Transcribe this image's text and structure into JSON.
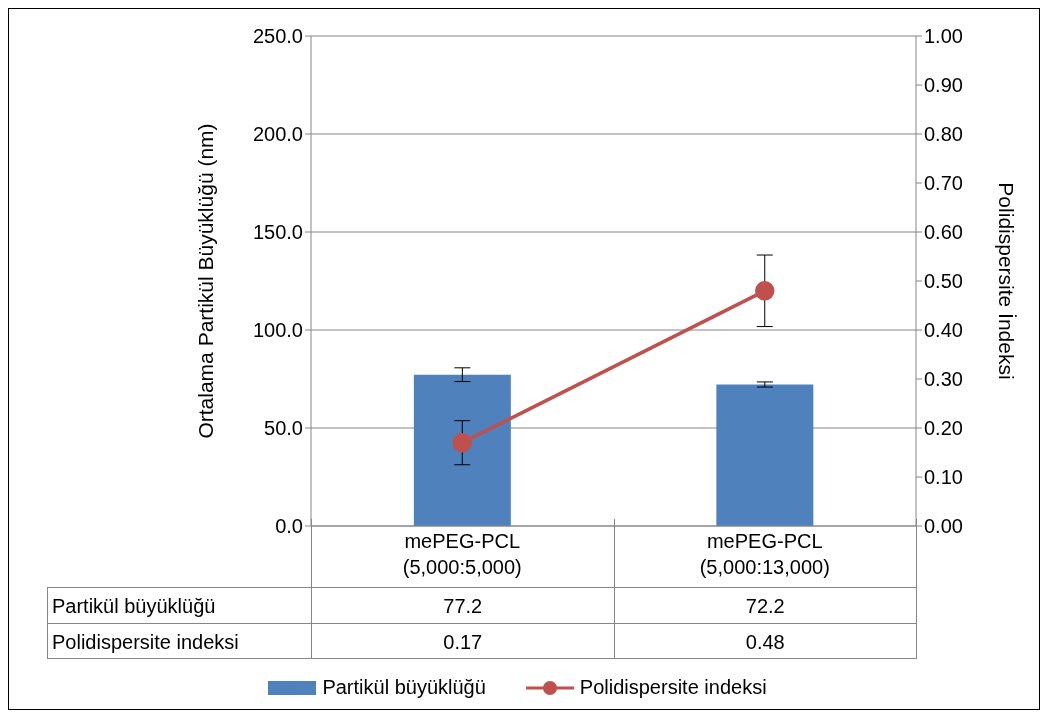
{
  "chart_data": {
    "type": "bar",
    "categories": [
      "mePEG-PCL (5,000:5,000)",
      "mePEG-PCL (5,000:13,000)"
    ],
    "series": [
      {
        "name": "Partikül büyüklüğü",
        "color": "#4f81bd",
        "values": [
          77.2,
          72.2
        ],
        "errors": [
          3.5,
          1.3
        ]
      },
      {
        "name": "Polidispersite indeksi",
        "type": "line",
        "axis": "y2",
        "color": "#c0504d",
        "values": [
          0.17,
          0.48
        ],
        "errors": [
          0.045,
          0.073
        ],
        "marker": "circle"
      }
    ],
    "ylabel": "Ortalama Partikül Büyüklüğü (nm)",
    "y2label": "Polidispersite İndeksi",
    "ylim": [
      0,
      250
    ],
    "yticks": [
      {
        "value": 0,
        "label": "0.0"
      },
      {
        "value": 50,
        "label": "50.0"
      },
      {
        "value": 100,
        "label": "100.0"
      },
      {
        "value": 150,
        "label": "150.0"
      },
      {
        "value": 200,
        "label": "200.0"
      },
      {
        "value": 250,
        "label": "250.0"
      }
    ],
    "y2lim": [
      0,
      1
    ],
    "y2ticks": [
      {
        "value": 0,
        "label": "0.00"
      },
      {
        "value": 0.1,
        "label": "0.10"
      },
      {
        "value": 0.2,
        "label": "0.20"
      },
      {
        "value": 0.3,
        "label": "0.30"
      },
      {
        "value": 0.4,
        "label": "0.40"
      },
      {
        "value": 0.5,
        "label": "0.50"
      },
      {
        "value": 0.6,
        "label": "0.60"
      },
      {
        "value": 0.7,
        "label": "0.70"
      },
      {
        "value": 0.8,
        "label": "0.80"
      },
      {
        "value": 0.9,
        "label": "0.90"
      },
      {
        "value": 1,
        "label": "1.00"
      }
    ],
    "grid": "y",
    "legend": "bottom",
    "data_labels": true
  }
}
